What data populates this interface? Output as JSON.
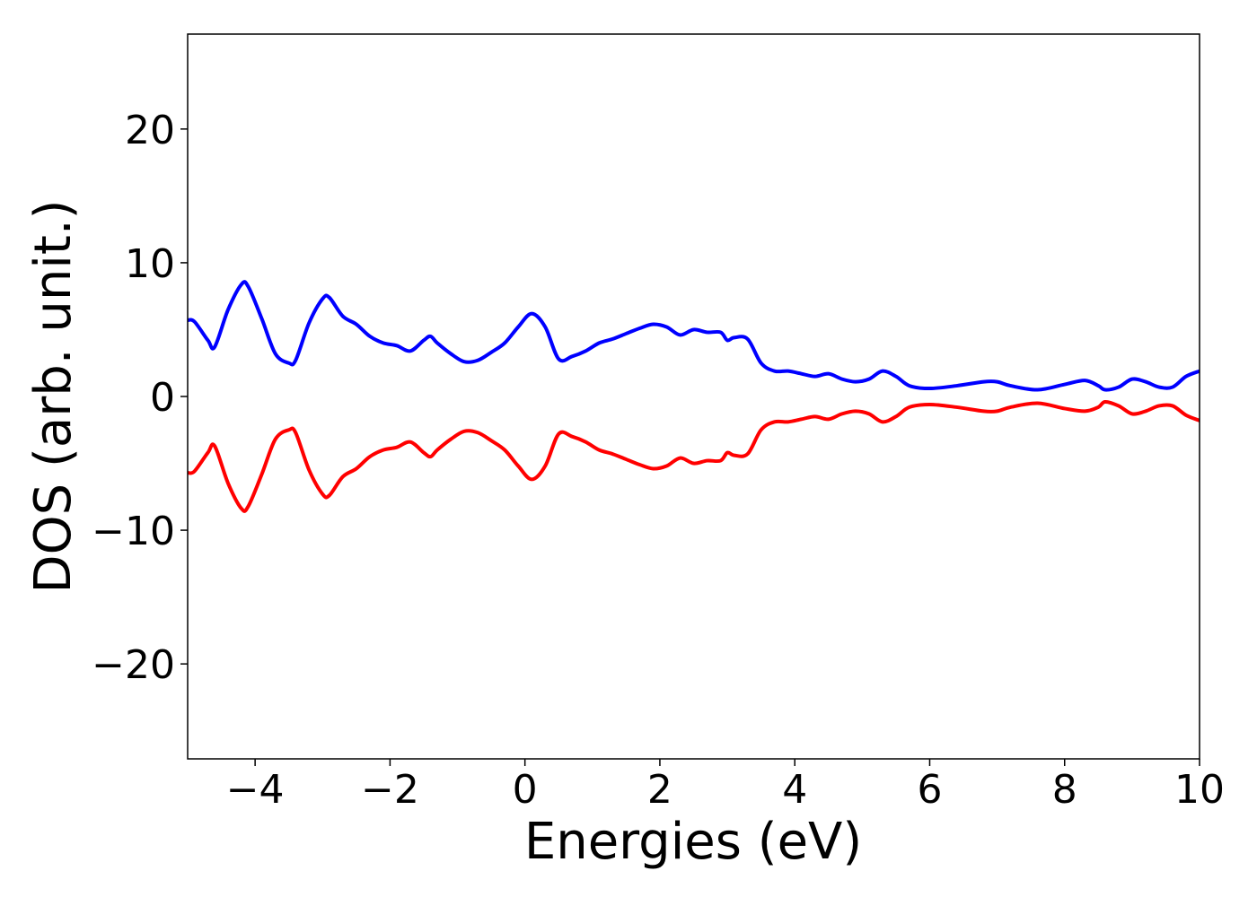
{
  "chart_data": {
    "type": "line",
    "xlabel": "Energies (eV)",
    "ylabel": "DOS (arb. unit.)",
    "x": [
      -5,
      -4.9,
      -4.7,
      -4.6,
      -4.4,
      -4.2,
      -4.1,
      -3.9,
      -3.7,
      -3.5,
      -3.4,
      -3.2,
      -3.0,
      -2.9,
      -2.7,
      -2.5,
      -2.3,
      -2.1,
      -1.9,
      -1.7,
      -1.5,
      -1.4,
      -1.3,
      -1.1,
      -0.9,
      -0.7,
      -0.5,
      -0.3,
      -0.1,
      0.1,
      0.3,
      0.5,
      0.7,
      0.9,
      1.1,
      1.3,
      1.5,
      1.7,
      1.9,
      2.1,
      2.3,
      2.5,
      2.7,
      2.9,
      3.0,
      3.1,
      3.3,
      3.5,
      3.7,
      3.9,
      4.1,
      4.3,
      4.5,
      4.7,
      4.9,
      5.1,
      5.3,
      5.5,
      5.7,
      6.0,
      6.4,
      6.8,
      7.0,
      7.2,
      7.6,
      8.0,
      8.3,
      8.5,
      8.6,
      8.8,
      9.0,
      9.2,
      9.4,
      9.6,
      9.8,
      10
    ],
    "series": [
      {
        "color": "#0000ff",
        "values": [
          5.7,
          5.6,
          4.2,
          3.7,
          6.5,
          8.4,
          8.2,
          5.8,
          3.2,
          2.5,
          2.7,
          5.5,
          7.3,
          7.4,
          6.0,
          5.4,
          4.5,
          4.0,
          3.8,
          3.4,
          4.2,
          4.5,
          4.0,
          3.2,
          2.6,
          2.7,
          3.3,
          4.0,
          5.2,
          6.2,
          5.2,
          2.8,
          3.0,
          3.4,
          4.0,
          4.3,
          4.7,
          5.1,
          5.4,
          5.2,
          4.6,
          5.0,
          4.8,
          4.8,
          4.2,
          4.4,
          4.3,
          2.5,
          1.9,
          1.9,
          1.7,
          1.5,
          1.7,
          1.3,
          1.1,
          1.3,
          1.9,
          1.5,
          0.8,
          0.6,
          0.8,
          1.1,
          1.1,
          0.8,
          0.5,
          0.9,
          1.2,
          0.8,
          0.5,
          0.7,
          1.3,
          1.1,
          0.7,
          0.7,
          1.5,
          1.9
        ]
      },
      {
        "color": "#ff0000",
        "values": [
          -5.7,
          -5.6,
          -4.2,
          -3.7,
          -6.5,
          -8.4,
          -8.2,
          -5.8,
          -3.2,
          -2.5,
          -2.7,
          -5.5,
          -7.3,
          -7.4,
          -6.0,
          -5.4,
          -4.5,
          -4.0,
          -3.8,
          -3.4,
          -4.2,
          -4.5,
          -4.0,
          -3.2,
          -2.6,
          -2.7,
          -3.3,
          -4.0,
          -5.2,
          -6.2,
          -5.2,
          -2.8,
          -3.0,
          -3.4,
          -4.0,
          -4.3,
          -4.7,
          -5.1,
          -5.4,
          -5.2,
          -4.6,
          -5.0,
          -4.8,
          -4.8,
          -4.2,
          -4.4,
          -4.3,
          -2.5,
          -1.9,
          -1.9,
          -1.7,
          -1.5,
          -1.7,
          -1.3,
          -1.1,
          -1.3,
          -1.9,
          -1.5,
          -0.8,
          -0.6,
          -0.8,
          -1.1,
          -1.1,
          -0.8,
          -0.5,
          -0.9,
          -1.1,
          -0.8,
          -0.4,
          -0.7,
          -1.3,
          -1.1,
          -0.7,
          -0.7,
          -1.4,
          -1.8
        ]
      }
    ],
    "xlim": [
      -5,
      10
    ],
    "ylim": [
      -27.1,
      27.1
    ],
    "xticks": [
      {
        "value": -4,
        "label": "−4"
      },
      {
        "value": -2,
        "label": "−2"
      },
      0,
      2,
      4,
      6,
      8,
      10
    ],
    "yticks": [
      {
        "value": -20,
        "label": "−20"
      },
      {
        "value": -10,
        "label": "−10"
      },
      0,
      10,
      20
    ]
  }
}
